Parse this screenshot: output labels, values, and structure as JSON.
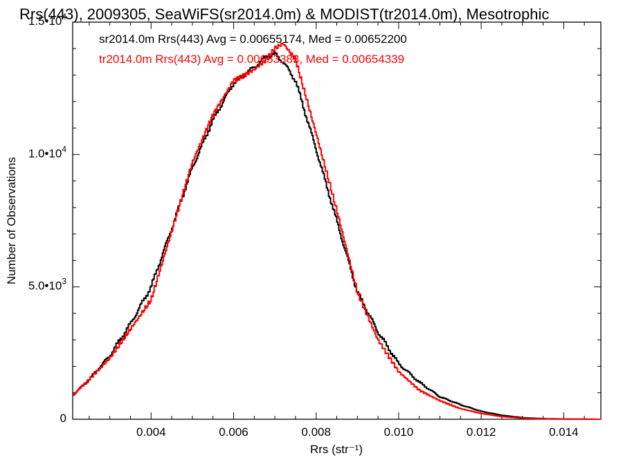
{
  "chart_data": {
    "type": "line",
    "title": "Rrs(443), 2009305, SeaWiFS(sr2014.0m) & MODIST(tr2014.0m), Mesotrophic",
    "xlabel": "Rrs (str⁻¹)",
    "ylabel": "Number of Observations",
    "xlim": [
      0.0021,
      0.0149
    ],
    "ylim": [
      0,
      15000
    ],
    "xticks": [
      0.004,
      0.006,
      0.008,
      0.01,
      0.012,
      0.014
    ],
    "xtick_labels": [
      "0.004",
      "0.006",
      "0.008",
      "0.010",
      "0.012",
      "0.014"
    ],
    "ytick_labels": [
      {
        "value": 0,
        "mantissa": "0",
        "exp": ""
      },
      {
        "value": 5000,
        "mantissa": "5.0•10",
        "exp": "3"
      },
      {
        "value": 10000,
        "mantissa": "1.0•10",
        "exp": "4"
      },
      {
        "value": 15000,
        "mantissa": "1.5•10",
        "exp": "4"
      }
    ],
    "grid": false,
    "legend_position": "top-left",
    "colors": {
      "sr": "#000000",
      "tr": "#ff0000"
    },
    "series": [
      {
        "name": "sr2014.0m",
        "legend": "sr2014.0m Rrs(443) Avg = 0.00655174, Med = 0.00652200",
        "color": "#000000",
        "x": [
          0.0021,
          0.0025,
          0.003,
          0.0035,
          0.004,
          0.0045,
          0.005,
          0.0055,
          0.006,
          0.0065,
          0.0068,
          0.007,
          0.0072,
          0.0075,
          0.008,
          0.0085,
          0.009,
          0.0095,
          0.01,
          0.0105,
          0.011,
          0.0115,
          0.012,
          0.0125,
          0.013,
          0.0135,
          0.014,
          0.0149
        ],
        "values": [
          900,
          1500,
          2400,
          3600,
          5000,
          7200,
          9500,
          11300,
          12700,
          13300,
          13700,
          13800,
          13500,
          12800,
          10200,
          7500,
          4800,
          3300,
          2100,
          1400,
          850,
          550,
          300,
          150,
          60,
          25,
          10,
          0
        ]
      },
      {
        "name": "tr2014.0m",
        "legend": "tr2014.0m Rrs(443) Avg = 0.00653383, Med = 0.00654339",
        "color": "#ff0000",
        "x": [
          0.0021,
          0.0025,
          0.003,
          0.0035,
          0.004,
          0.0045,
          0.005,
          0.0055,
          0.006,
          0.0065,
          0.0068,
          0.007,
          0.0072,
          0.0075,
          0.008,
          0.0085,
          0.009,
          0.0095,
          0.01,
          0.0105,
          0.011,
          0.0115,
          0.012,
          0.0125,
          0.013,
          0.0135,
          0.014,
          0.0149
        ],
        "values": [
          900,
          1500,
          2300,
          3400,
          4500,
          7100,
          9700,
          11500,
          12800,
          13200,
          13600,
          14000,
          14200,
          13600,
          10800,
          7900,
          4800,
          3000,
          1800,
          1100,
          700,
          400,
          220,
          100,
          40,
          15,
          5,
          0
        ]
      }
    ]
  }
}
